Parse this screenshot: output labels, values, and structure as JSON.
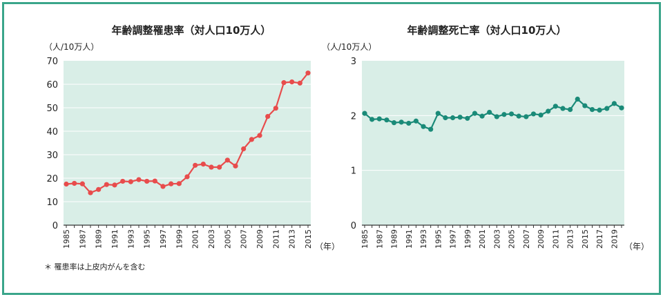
{
  "colors": {
    "plot_bg": "#d9eee7",
    "grid": "#ffffff",
    "incidence_line": "#e84c4c",
    "mortality_line": "#1a8a78",
    "frame": "#3aa58a"
  },
  "footnote": "＊ 罹患率は上皮内がんを含む",
  "chart_data": [
    {
      "type": "line",
      "title": "年齢調整罹患率（対人口10万人）",
      "ylabel": "（人/10万人）",
      "xlabel": "（年）",
      "ylim": [
        0,
        70
      ],
      "yticks": [
        "0",
        "10",
        "20",
        "30",
        "40",
        "50",
        "60",
        "70"
      ],
      "xticks": [
        "1985",
        "1987",
        "1989",
        "1991",
        "1993",
        "1995",
        "1997",
        "1999",
        "2001",
        "2003",
        "2005",
        "2007",
        "2009",
        "2011",
        "2013",
        "2015"
      ],
      "x": [
        1985,
        1986,
        1987,
        1988,
        1989,
        1990,
        1991,
        1992,
        1993,
        1994,
        1995,
        1996,
        1997,
        1998,
        1999,
        2000,
        2001,
        2002,
        2003,
        2004,
        2005,
        2006,
        2007,
        2008,
        2009,
        2010,
        2011,
        2012,
        2013,
        2014,
        2015
      ],
      "values": [
        17.5,
        17.8,
        17.6,
        13.8,
        15.2,
        17.3,
        17.1,
        18.7,
        18.5,
        19.4,
        18.7,
        18.8,
        16.5,
        17.6,
        17.7,
        20.6,
        25.5,
        26.0,
        24.7,
        24.7,
        27.7,
        25.2,
        32.5,
        36.5,
        38.2,
        46.3,
        49.8,
        60.7,
        61.0,
        60.5,
        64.8
      ],
      "grid": true,
      "legend": "none"
    },
    {
      "type": "line",
      "title": "年齢調整死亡率（対人口10万人）",
      "ylabel": "（人/10万人）",
      "xlabel": "（年）",
      "ylim": [
        0,
        3
      ],
      "yticks": [
        "0",
        "1",
        "2",
        "3"
      ],
      "xticks": [
        "1985",
        "1987",
        "1989",
        "1991",
        "1993",
        "1995",
        "1997",
        "1999",
        "2001",
        "2003",
        "2005",
        "2007",
        "2009",
        "2011",
        "2013",
        "2015",
        "2017",
        "2019"
      ],
      "x": [
        1985,
        1986,
        1987,
        1988,
        1989,
        1990,
        1991,
        1992,
        1993,
        1994,
        1995,
        1996,
        1997,
        1998,
        1999,
        2000,
        2001,
        2002,
        2003,
        2004,
        2005,
        2006,
        2007,
        2008,
        2009,
        2010,
        2011,
        2012,
        2013,
        2014,
        2015,
        2016,
        2017,
        2018,
        2019,
        2020
      ],
      "values": [
        2.04,
        1.93,
        1.94,
        1.92,
        1.87,
        1.88,
        1.86,
        1.9,
        1.8,
        1.75,
        2.04,
        1.96,
        1.96,
        1.97,
        1.95,
        2.04,
        1.99,
        2.06,
        1.98,
        2.02,
        2.03,
        1.99,
        1.98,
        2.03,
        2.01,
        2.08,
        2.17,
        2.13,
        2.11,
        2.3,
        2.18,
        2.11,
        2.1,
        2.13,
        2.22,
        2.14
      ],
      "grid": true,
      "legend": "none"
    }
  ]
}
